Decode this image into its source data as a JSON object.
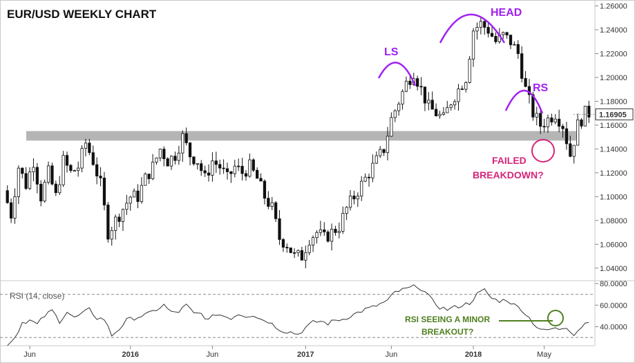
{
  "chart_data": [
    {
      "type": "candlestick",
      "title": "EUR/USD WEEKLY CHART",
      "ylim": [
        1.03,
        1.265
      ],
      "y_ticks": [
        "1.26000",
        "1.24000",
        "1.22000",
        "1.20000",
        "1.18000",
        "1.16000",
        "1.14000",
        "1.12000",
        "1.10000",
        "1.08000",
        "1.06000",
        "1.04000"
      ],
      "last_price": "1.16905",
      "x_ticks": [
        {
          "label": "Jun",
          "bold": false,
          "week": 6
        },
        {
          "label": "2016",
          "bold": true,
          "week": 33
        },
        {
          "label": "Jun",
          "bold": false,
          "week": 55
        },
        {
          "label": "2017",
          "bold": true,
          "week": 80
        },
        {
          "label": "Jun",
          "bold": false,
          "week": 103
        },
        {
          "label": "2018",
          "bold": true,
          "week": 125
        },
        {
          "label": "May",
          "bold": false,
          "week": 144
        }
      ],
      "anchors": [
        [
          0,
          1.105
        ],
        [
          2,
          1.085
        ],
        [
          4,
          1.125
        ],
        [
          6,
          1.11
        ],
        [
          8,
          1.13
        ],
        [
          10,
          1.1
        ],
        [
          12,
          1.12
        ],
        [
          14,
          1.1
        ],
        [
          16,
          1.13
        ],
        [
          18,
          1.12
        ],
        [
          20,
          1.125
        ],
        [
          22,
          1.145
        ],
        [
          24,
          1.13
        ],
        [
          26,
          1.11
        ],
        [
          28,
          1.07
        ],
        [
          30,
          1.08
        ],
        [
          32,
          1.09
        ],
        [
          34,
          1.1
        ],
        [
          36,
          1.1
        ],
        [
          38,
          1.115
        ],
        [
          40,
          1.125
        ],
        [
          42,
          1.14
        ],
        [
          44,
          1.13
        ],
        [
          46,
          1.135
        ],
        [
          48,
          1.15
        ],
        [
          50,
          1.135
        ],
        [
          52,
          1.13
        ],
        [
          54,
          1.115
        ],
        [
          56,
          1.13
        ],
        [
          58,
          1.125
        ],
        [
          60,
          1.115
        ],
        [
          62,
          1.125
        ],
        [
          64,
          1.12
        ],
        [
          66,
          1.125
        ],
        [
          68,
          1.115
        ],
        [
          70,
          1.1
        ],
        [
          72,
          1.09
        ],
        [
          74,
          1.065
        ],
        [
          76,
          1.06
        ],
        [
          78,
          1.05
        ],
        [
          80,
          1.05
        ],
        [
          82,
          1.065
        ],
        [
          84,
          1.07
        ],
        [
          86,
          1.065
        ],
        [
          88,
          1.07
        ],
        [
          90,
          1.075
        ],
        [
          92,
          1.09
        ],
        [
          94,
          1.1
        ],
        [
          96,
          1.11
        ],
        [
          98,
          1.12
        ],
        [
          100,
          1.13
        ],
        [
          102,
          1.14
        ],
        [
          104,
          1.165
        ],
        [
          106,
          1.18
        ],
        [
          108,
          1.195
        ],
        [
          110,
          1.205
        ],
        [
          112,
          1.19
        ],
        [
          114,
          1.175
        ],
        [
          116,
          1.17
        ],
        [
          118,
          1.165
        ],
        [
          120,
          1.18
        ],
        [
          122,
          1.19
        ],
        [
          124,
          1.2
        ],
        [
          126,
          1.24
        ],
        [
          128,
          1.245
        ],
        [
          130,
          1.24
        ],
        [
          132,
          1.23
        ],
        [
          134,
          1.235
        ],
        [
          136,
          1.23
        ],
        [
          138,
          1.22
        ],
        [
          140,
          1.19
        ],
        [
          142,
          1.17
        ],
        [
          144,
          1.16
        ],
        [
          146,
          1.165
        ],
        [
          148,
          1.17
        ],
        [
          150,
          1.16
        ],
        [
          152,
          1.135
        ],
        [
          154,
          1.16
        ],
        [
          156,
          1.17
        ]
      ],
      "support_zone": [
        1.147,
        1.155
      ],
      "annotations": {
        "head": "HEAD",
        "left_shoulder": "LS",
        "right_shoulder": "RS",
        "failed_breakdown": [
          "FAILED",
          "BREAKDOWN?"
        ]
      }
    },
    {
      "type": "line",
      "title": "RSI (14, close)",
      "ylim": [
        23,
        82
      ],
      "y_ticks": [
        "80.0000",
        "60.0000",
        "40.0000"
      ],
      "guide_levels": [
        70,
        30
      ],
      "anchors": [
        [
          0,
          24
        ],
        [
          2,
          30
        ],
        [
          4,
          44
        ],
        [
          6,
          46
        ],
        [
          8,
          42
        ],
        [
          10,
          50
        ],
        [
          12,
          55
        ],
        [
          14,
          45
        ],
        [
          16,
          54
        ],
        [
          18,
          48
        ],
        [
          20,
          52
        ],
        [
          22,
          56
        ],
        [
          24,
          48
        ],
        [
          26,
          47
        ],
        [
          28,
          32
        ],
        [
          30,
          38
        ],
        [
          32,
          46
        ],
        [
          34,
          48
        ],
        [
          36,
          50
        ],
        [
          38,
          52
        ],
        [
          40,
          56
        ],
        [
          42,
          60
        ],
        [
          44,
          53
        ],
        [
          46,
          54
        ],
        [
          48,
          60
        ],
        [
          50,
          52
        ],
        [
          52,
          52
        ],
        [
          54,
          46
        ],
        [
          56,
          52
        ],
        [
          58,
          50
        ],
        [
          60,
          48
        ],
        [
          62,
          52
        ],
        [
          64,
          50
        ],
        [
          66,
          51
        ],
        [
          68,
          47
        ],
        [
          70,
          45
        ],
        [
          72,
          40
        ],
        [
          74,
          36
        ],
        [
          76,
          35
        ],
        [
          78,
          33
        ],
        [
          80,
          39
        ],
        [
          82,
          44
        ],
        [
          84,
          45
        ],
        [
          86,
          43
        ],
        [
          88,
          46
        ],
        [
          90,
          47
        ],
        [
          92,
          50
        ],
        [
          94,
          53
        ],
        [
          96,
          56
        ],
        [
          98,
          58
        ],
        [
          100,
          61
        ],
        [
          102,
          64
        ],
        [
          104,
          72
        ],
        [
          106,
          74
        ],
        [
          108,
          76
        ],
        [
          110,
          78
        ],
        [
          112,
          72
        ],
        [
          114,
          64
        ],
        [
          116,
          58
        ],
        [
          118,
          56
        ],
        [
          120,
          58
        ],
        [
          122,
          60
        ],
        [
          124,
          62
        ],
        [
          126,
          70
        ],
        [
          128,
          74
        ],
        [
          130,
          66
        ],
        [
          132,
          64
        ],
        [
          134,
          65
        ],
        [
          136,
          60
        ],
        [
          138,
          56
        ],
        [
          140,
          48
        ],
        [
          142,
          40
        ],
        [
          144,
          36
        ],
        [
          146,
          38
        ],
        [
          148,
          38
        ],
        [
          150,
          40
        ],
        [
          152,
          33
        ],
        [
          154,
          40
        ],
        [
          156,
          46
        ]
      ],
      "annotations": {
        "rsi_breakout": [
          "RSI SEEING A MINOR",
          "BREAKOUT?"
        ]
      }
    }
  ],
  "colors": {
    "candle": "#111111",
    "rsi_line": "#333333",
    "support_zone": "#b5b5b5",
    "arc_purple": "#a020f0",
    "magenta": "#d6237a",
    "green_annotation": "#4f7f1f",
    "guide_line": "#888888"
  }
}
